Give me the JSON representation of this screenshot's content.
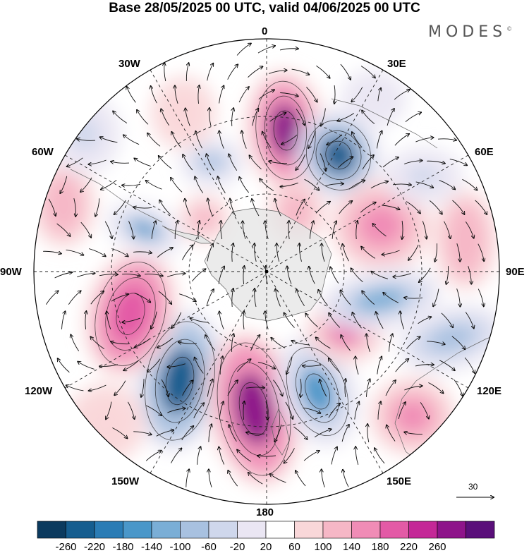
{
  "title": "Base 28/05/2025 00 UTC, valid 04/06/2025 00 UTC",
  "brand": "MODES",
  "brand_mark": "©",
  "longitude_labels": {
    "top": "0",
    "e30": "30E",
    "e60": "60E",
    "e90": "90E",
    "e120": "120E",
    "e150": "150E",
    "bottom": "180",
    "w150": "150W",
    "w120": "120W",
    "w90": "90W",
    "w60": "60W",
    "w30": "30W"
  },
  "vector_reference": {
    "label": "30"
  },
  "colorbar": {
    "levels": [
      "-260",
      "-220",
      "-180",
      "-140",
      "-100",
      "-60",
      "-20",
      "20",
      "60",
      "100",
      "140",
      "180",
      "220",
      "260"
    ],
    "colors": [
      "#0b3a5e",
      "#155d8f",
      "#2a7cb5",
      "#4a97c9",
      "#7aaed6",
      "#a8c1e0",
      "#cfd7ec",
      "#eae6f3",
      "#ffffff",
      "#f9d7d9",
      "#f6b7c6",
      "#f08cb6",
      "#e35aa6",
      "#c42897",
      "#8e148a",
      "#5a0f7a"
    ]
  },
  "colors": {
    "land": "#e4e4e4",
    "grid": "#222222"
  }
}
